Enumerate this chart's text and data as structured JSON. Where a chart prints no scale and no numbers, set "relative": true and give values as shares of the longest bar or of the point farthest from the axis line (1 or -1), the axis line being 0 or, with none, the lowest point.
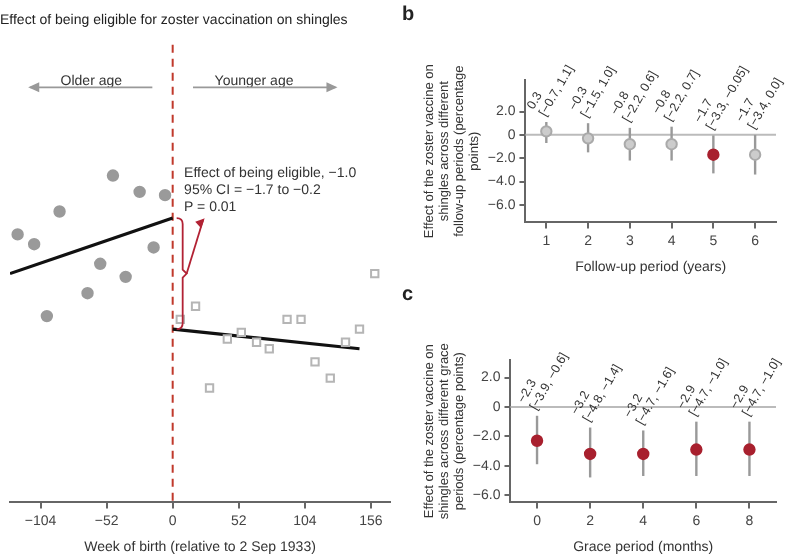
{
  "chart_data": [
    {
      "type": "scatter",
      "title": "Effect of being eligible for zoster vaccination on shingles",
      "xlabel": "Week of birth (relative to 2 Sep 1933)",
      "relative": true,
      "xlim": [
        -128,
        171
      ],
      "xticks": [
        {
          "value": -104,
          "label": "−104"
        },
        {
          "value": -52,
          "label": "−52"
        },
        0,
        52,
        104,
        156
      ],
      "series": [
        {
          "type": "scatter",
          "marker": "circle",
          "color": "#9a9a9a",
          "x": [
            -122,
            -109,
            -99,
            -89,
            -67,
            -57,
            -47,
            -37,
            -26,
            -15,
            -6
          ],
          "values": [
            0.82,
            0.79,
            0.57,
            0.89,
            0.64,
            0.73,
            1.0,
            0.69,
            0.95,
            0.78,
            0.94
          ]
        },
        {
          "type": "scatter",
          "marker": "square",
          "color": "#b5b5b5",
          "x": [
            6,
            18,
            29,
            43,
            54,
            66,
            76,
            90,
            101,
            112,
            124,
            136,
            147,
            159
          ],
          "values": [
            0.56,
            0.6,
            0.35,
            0.5,
            0.52,
            0.49,
            0.47,
            0.56,
            0.56,
            0.43,
            0.38,
            0.49,
            0.53,
            0.7
          ]
        },
        {
          "type": "line",
          "color": "#111111",
          "x": [
            -128,
            0
          ],
          "values": [
            0.7,
            0.87
          ]
        },
        {
          "type": "line",
          "color": "#111111",
          "x": [
            0,
            147
          ],
          "values": [
            0.53,
            0.47
          ]
        }
      ],
      "ref_lines": [
        {
          "axis": "x",
          "value": 0,
          "color": "#c0392b",
          "line_style": "dashed"
        }
      ],
      "annotations": [
        "Older age",
        "Younger age",
        "Effect of being eligible, −1.0\n95% CI = −1.7 to −0.2\nP = 0.01"
      ]
    },
    {
      "type": "scatter",
      "title": "b",
      "xlabel": "Follow-up period (years)",
      "ylabel": "Effect of the zoster vaccine on shingles across different follow-up periods (percentage points)",
      "categories": [
        "1",
        "2",
        "3",
        "4",
        "5",
        "6"
      ],
      "values": [
        0.3,
        -0.3,
        -0.8,
        -0.8,
        -1.7,
        -1.7
      ],
      "errors": [
        [
          -0.7,
          1.1
        ],
        [
          -1.5,
          1.0
        ],
        [
          -2.2,
          0.6
        ],
        [
          -2.2,
          0.7
        ],
        [
          -3.3,
          -0.05
        ],
        [
          -3.4,
          0.0
        ]
      ],
      "value_labels": [
        "0.3\n[−0.7, 1.1]",
        "−0.3\n[−1.5, 1.0]",
        "−0.8\n[−2.2, 0.6]",
        "−0.8\n[−2.2, 0.7]",
        "−1.7\n[−3.3, −0.05]",
        "−1.7\n[−3.4, 0.0]"
      ],
      "colors": [
        "#cccccc",
        "#cccccc",
        "#cccccc",
        "#cccccc",
        "#a8202e",
        "#cccccc"
      ],
      "marker": "circle",
      "ylim": [
        -7.5,
        4.7
      ],
      "yticks": [
        {
          "value": -6,
          "label": "−6.0"
        },
        {
          "value": -4,
          "label": "−4.0"
        },
        {
          "value": -2,
          "label": "−2.0"
        },
        0,
        {
          "value": 2,
          "label": "2.0"
        }
      ],
      "ref_lines": [
        {
          "axis": "y",
          "value": 0,
          "color": "#bbbbbb"
        }
      ]
    },
    {
      "type": "scatter",
      "title": "c",
      "xlabel": "Grace period (months)",
      "ylabel": "Effect of the zoster vaccine on shingles across different grace periods (percentage points)",
      "categories": [
        "0",
        "2",
        "4",
        "6",
        "8"
      ],
      "values": [
        -2.3,
        -3.2,
        -3.2,
        -2.9,
        -2.9
      ],
      "errors": [
        [
          -3.9,
          -0.6
        ],
        [
          -4.8,
          -1.4
        ],
        [
          -4.7,
          -1.6
        ],
        [
          -4.7,
          -1.0
        ],
        [
          -4.7,
          -1.0
        ]
      ],
      "value_labels": [
        "−2.3\n[−3.9, −0.6]",
        "−3.2\n[−4.8, −1.4]",
        "−3.2\n[−4.7, −1.6]",
        "−2.9\n[−4.7, −1.0]",
        "−2.9\n[−4.7, −1.0]"
      ],
      "colors": [
        "#a8202e",
        "#a8202e",
        "#a8202e",
        "#a8202e",
        "#a8202e"
      ],
      "marker": "circle",
      "ylim": [
        -6.5,
        3.2
      ],
      "yticks": [
        {
          "value": -6,
          "label": "−6.0"
        },
        {
          "value": -4,
          "label": "−4.0"
        },
        {
          "value": -2,
          "label": "−2.0"
        },
        0,
        {
          "value": 2,
          "label": "2.0"
        }
      ],
      "ref_lines": [
        {
          "axis": "y",
          "value": 0,
          "color": "#bbbbbb"
        }
      ]
    }
  ]
}
